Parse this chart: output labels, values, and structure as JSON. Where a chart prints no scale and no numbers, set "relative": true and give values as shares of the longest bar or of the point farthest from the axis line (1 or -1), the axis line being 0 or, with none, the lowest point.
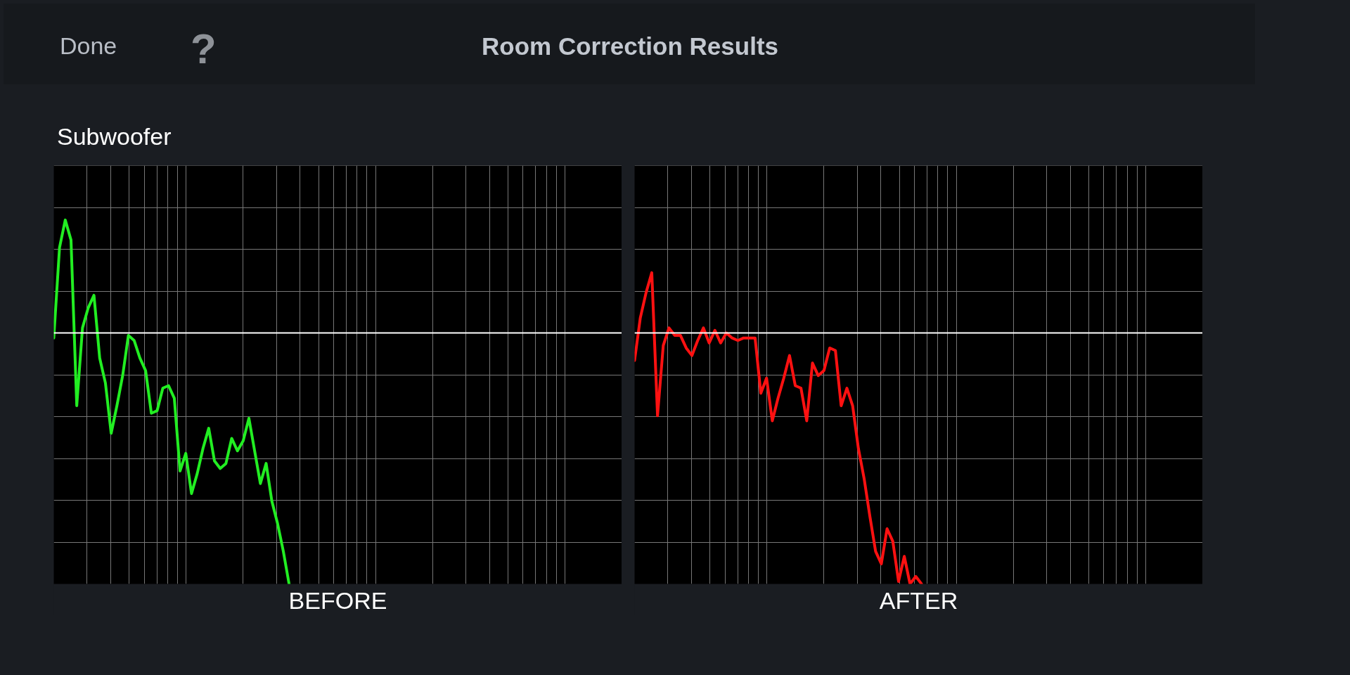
{
  "chart_data": [
    {
      "type": "line",
      "title": "Room Correction Results",
      "subtitle": "Subwoofer",
      "annotations": [
        "Done",
        "?"
      ],
      "xlabel": "BEFORE",
      "relative": true,
      "grid": true,
      "categories": [
        null,
        null,
        null,
        null,
        null,
        null,
        null,
        null,
        null,
        null,
        null,
        null,
        null,
        null,
        null,
        null,
        null,
        null,
        null,
        null,
        null,
        null,
        null,
        null,
        null,
        null,
        null,
        null,
        null,
        null,
        null,
        null,
        null,
        null,
        null,
        null,
        null,
        null,
        null,
        null,
        null,
        null,
        null,
        null,
        null,
        null,
        null,
        null,
        null,
        null,
        null,
        null,
        null,
        null,
        null,
        null,
        null,
        null,
        null,
        null,
        null,
        null,
        null,
        null,
        null,
        null,
        null,
        null,
        null,
        null,
        null,
        null,
        null,
        null,
        null,
        null,
        null,
        null,
        null,
        null,
        null,
        null,
        null,
        null,
        null,
        null,
        null,
        null,
        null,
        null,
        null,
        null,
        null,
        null,
        null,
        null,
        null,
        null,
        null,
        null
      ],
      "series": [
        {
          "color": "#22ee22",
          "values": [
            -0.02,
            0.34,
            0.45,
            0.37,
            -0.29,
            0.02,
            0.1,
            0.15,
            -0.1,
            -0.2,
            -0.4,
            -0.29,
            -0.17,
            -0.01,
            -0.03,
            -0.1,
            -0.15,
            -0.32,
            -0.31,
            -0.22,
            -0.21,
            -0.26,
            -0.55,
            -0.48,
            -0.64,
            -0.56,
            -0.46,
            -0.38,
            -0.51,
            -0.54,
            -0.52,
            -0.42,
            -0.47,
            -0.43,
            -0.34,
            -0.47,
            -0.6,
            -0.52,
            -0.67,
            -0.76,
            -0.87,
            -1,
            null,
            null,
            null,
            null,
            null,
            null,
            null,
            null,
            null,
            null,
            null,
            null,
            null,
            null,
            null,
            null,
            null,
            null,
            null,
            null,
            null,
            null,
            null,
            null,
            null,
            null,
            null,
            null,
            null,
            null,
            null,
            null,
            null,
            null,
            null,
            null,
            null,
            null,
            null,
            null,
            null,
            null,
            null,
            null,
            null,
            null,
            null,
            null,
            null,
            null,
            null,
            null,
            null,
            null,
            null,
            null,
            null,
            null
          ]
        }
      ]
    },
    {
      "type": "line",
      "xlabel": "AFTER",
      "relative": true,
      "grid": true,
      "categories": [
        null,
        null,
        null,
        null,
        null,
        null,
        null,
        null,
        null,
        null,
        null,
        null,
        null,
        null,
        null,
        null,
        null,
        null,
        null,
        null,
        null,
        null,
        null,
        null,
        null,
        null,
        null,
        null,
        null,
        null,
        null,
        null,
        null,
        null,
        null,
        null,
        null,
        null,
        null,
        null,
        null,
        null,
        null,
        null,
        null,
        null,
        null,
        null,
        null,
        null,
        null,
        null,
        null,
        null,
        null,
        null,
        null,
        null,
        null,
        null,
        null,
        null,
        null,
        null,
        null,
        null,
        null,
        null,
        null,
        null,
        null,
        null,
        null,
        null,
        null,
        null,
        null,
        null,
        null,
        null,
        null,
        null,
        null,
        null,
        null,
        null,
        null,
        null,
        null,
        null,
        null,
        null,
        null,
        null,
        null,
        null,
        null,
        null,
        null,
        null
      ],
      "series": [
        {
          "color": "#ff1111",
          "values": [
            -0.11,
            0.06,
            0.16,
            0.24,
            -0.33,
            -0.05,
            0.02,
            -0.01,
            -0.01,
            -0.06,
            -0.09,
            -0.03,
            0.02,
            -0.04,
            0.01,
            -0.04,
            0,
            -0.02,
            -0.03,
            -0.02,
            -0.02,
            -0.02,
            -0.24,
            -0.18,
            -0.35,
            -0.26,
            -0.18,
            -0.09,
            -0.21,
            -0.22,
            -0.35,
            -0.12,
            -0.17,
            -0.15,
            -0.06,
            -0.07,
            -0.29,
            -0.22,
            -0.29,
            -0.46,
            -0.58,
            -0.73,
            -0.87,
            -0.92,
            -0.78,
            -0.83,
            -0.99,
            -0.89,
            -1,
            -0.97,
            -1,
            null,
            null,
            null,
            null,
            null,
            null,
            null,
            null,
            null,
            null,
            null,
            null,
            null,
            null,
            null,
            null,
            null,
            null,
            null,
            null,
            null,
            null,
            null,
            null,
            null,
            null,
            null,
            null,
            null,
            null,
            null,
            null,
            null,
            null,
            null,
            null,
            null,
            null,
            null,
            null,
            null,
            null,
            null,
            null,
            null,
            null,
            null,
            null,
            null
          ]
        }
      ]
    }
  ]
}
